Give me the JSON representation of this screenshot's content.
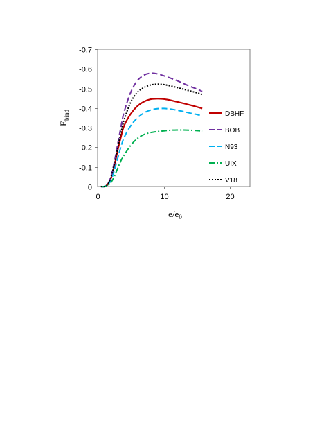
{
  "chart_data": {
    "type": "line",
    "title": "",
    "xlabel": {
      "main": "e/e",
      "sub": "0"
    },
    "ylabel": {
      "main": "E",
      "sub": "bind"
    },
    "xlim": [
      0,
      23
    ],
    "ylim": [
      0,
      -0.7
    ],
    "y_inverted": true,
    "grid": false,
    "legend_position": "right",
    "x_ticks": [
      {
        "value": 0,
        "label": "0"
      },
      {
        "value": 10,
        "label": "10"
      },
      {
        "value": 20,
        "label": "20"
      }
    ],
    "y_ticks": [
      {
        "value": 0,
        "label": "0"
      },
      {
        "value": -0.1,
        "label": "-0.1"
      },
      {
        "value": -0.2,
        "label": "-0.2"
      },
      {
        "value": -0.3,
        "label": "-0.3"
      },
      {
        "value": -0.4,
        "label": "-0.4"
      },
      {
        "value": -0.5,
        "label": "-0.5"
      },
      {
        "value": -0.6,
        "label": "-0.6"
      },
      {
        "value": -0.7,
        "label": "-0.7"
      }
    ],
    "series": [
      {
        "name": "DBHF",
        "color": "#c00000",
        "dash": "solid",
        "x": [
          0.5,
          1,
          1.5,
          2,
          2.5,
          3,
          3.5,
          4,
          5,
          6,
          7,
          8,
          9,
          10,
          11,
          12,
          13,
          14,
          15,
          15.8
        ],
        "y": [
          0,
          0,
          -0.01,
          -0.04,
          -0.1,
          -0.18,
          -0.25,
          -0.31,
          -0.37,
          -0.41,
          -0.433,
          -0.445,
          -0.448,
          -0.446,
          -0.44,
          -0.432,
          -0.424,
          -0.415,
          -0.406,
          -0.398
        ]
      },
      {
        "name": "BOB",
        "color": "#7030a0",
        "dash": "dashed",
        "x": [
          0.5,
          1,
          1.5,
          2,
          2.5,
          3,
          3.5,
          4,
          5,
          6,
          7,
          8,
          9,
          10,
          11,
          12,
          13,
          14,
          15,
          15.8
        ],
        "y": [
          0,
          0,
          -0.01,
          -0.05,
          -0.12,
          -0.21,
          -0.3,
          -0.38,
          -0.48,
          -0.54,
          -0.568,
          -0.578,
          -0.575,
          -0.565,
          -0.553,
          -0.54,
          -0.525,
          -0.51,
          -0.497,
          -0.485
        ]
      },
      {
        "name": "N93",
        "color": "#00b0f0",
        "dash": "dashed",
        "x": [
          0.5,
          1,
          1.5,
          2,
          2.5,
          3,
          3.5,
          4,
          5,
          6,
          7,
          8,
          9,
          10,
          11,
          12,
          13,
          14,
          15,
          15.8
        ],
        "y": [
          0,
          0,
          -0.01,
          -0.03,
          -0.08,
          -0.14,
          -0.2,
          -0.25,
          -0.31,
          -0.35,
          -0.375,
          -0.39,
          -0.397,
          -0.398,
          -0.395,
          -0.389,
          -0.382,
          -0.374,
          -0.367,
          -0.36
        ]
      },
      {
        "name": "UIX",
        "color": "#00b050",
        "dash": "dashdot",
        "x": [
          0.5,
          1,
          1.5,
          2,
          2.5,
          3,
          3.5,
          4,
          5,
          6,
          7,
          8,
          9,
          10,
          11,
          12,
          13,
          14,
          15,
          15.8
        ],
        "y": [
          0,
          0,
          -0.005,
          -0.02,
          -0.05,
          -0.09,
          -0.13,
          -0.16,
          -0.21,
          -0.245,
          -0.265,
          -0.275,
          -0.28,
          -0.284,
          -0.287,
          -0.288,
          -0.288,
          -0.287,
          -0.285,
          -0.283
        ]
      },
      {
        "name": "V18",
        "color": "#000000",
        "dash": "dotted",
        "x": [
          0.5,
          1,
          1.5,
          2,
          2.5,
          3,
          3.5,
          4,
          5,
          6,
          7,
          8,
          9,
          10,
          11,
          12,
          13,
          14,
          15,
          15.8
        ],
        "y": [
          0,
          0,
          -0.01,
          -0.045,
          -0.11,
          -0.19,
          -0.27,
          -0.34,
          -0.43,
          -0.48,
          -0.505,
          -0.518,
          -0.522,
          -0.52,
          -0.513,
          -0.505,
          -0.496,
          -0.487,
          -0.478,
          -0.47
        ]
      }
    ]
  }
}
